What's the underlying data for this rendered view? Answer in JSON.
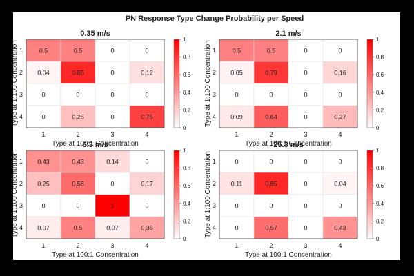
{
  "figure_title": "PN Response Type Change Probability per Speed",
  "colorbar": {
    "ticks": [
      "0",
      "0.2",
      "0.4",
      "0.6",
      "0.8",
      "1"
    ],
    "min": 0,
    "max": 1,
    "low_color": "#ffffff",
    "high_color": "#ff0000"
  },
  "chart_data": [
    {
      "type": "heatmap",
      "title": "0.35 m/s",
      "xlabel": "Type at 100:1 Concentration",
      "ylabel": "Type at 1:100 Concentration",
      "x_categories": [
        "1",
        "2",
        "3",
        "4"
      ],
      "y_categories": [
        "1",
        "2",
        "3",
        "4"
      ],
      "values": [
        [
          0.5,
          0.5,
          0,
          0
        ],
        [
          0.04,
          0.85,
          0,
          0.12
        ],
        [
          0,
          0,
          0,
          0
        ],
        [
          0,
          0.25,
          0,
          0.75
        ]
      ],
      "labels": [
        [
          "0.5",
          "0.5",
          "0",
          "0"
        ],
        [
          "0.04",
          "0.85",
          "0",
          "0.12"
        ],
        [
          "0",
          "0",
          "0",
          "0"
        ],
        [
          "0",
          "0.25",
          "0",
          "0.75"
        ]
      ]
    },
    {
      "type": "heatmap",
      "title": "2.1 m/s",
      "xlabel": "Type at 100:1 Concentration",
      "ylabel": "Type at 1:100 Concentration",
      "x_categories": [
        "1",
        "2",
        "3",
        "4"
      ],
      "y_categories": [
        "1",
        "2",
        "3",
        "4"
      ],
      "values": [
        [
          0.5,
          0.5,
          0,
          0
        ],
        [
          0.05,
          0.79,
          0,
          0.16
        ],
        [
          0,
          0,
          0,
          0
        ],
        [
          0.09,
          0.64,
          0,
          0.27
        ]
      ],
      "labels": [
        [
          "0.5",
          "0.5",
          "0",
          "0"
        ],
        [
          "0.05",
          "0.79",
          "0",
          "0.16"
        ],
        [
          "0",
          "0",
          "0",
          "0"
        ],
        [
          "0.09",
          "0.64",
          "0",
          "0.27"
        ]
      ]
    },
    {
      "type": "heatmap",
      "title": "6.3 m/s",
      "xlabel": "Type at 100:1 Concentration",
      "ylabel": "Type at 1:100 Concentration",
      "x_categories": [
        "1",
        "2",
        "3",
        "4"
      ],
      "y_categories": [
        "1",
        "2",
        "3",
        "4"
      ],
      "values": [
        [
          0.43,
          0.43,
          0.14,
          0
        ],
        [
          0.25,
          0.58,
          0,
          0.17
        ],
        [
          0,
          0,
          1,
          0
        ],
        [
          0.07,
          0.5,
          0.07,
          0.36
        ]
      ],
      "labels": [
        [
          "0.43",
          "0.43",
          "0.14",
          "0"
        ],
        [
          "0.25",
          "0.58",
          "0",
          "0.17"
        ],
        [
          "0",
          "0",
          "1",
          "0"
        ],
        [
          "0.07",
          "0.5",
          "0.07",
          "0.36"
        ]
      ]
    },
    {
      "type": "heatmap",
      "title": "25.3 m/s",
      "xlabel": "Type at 100:1 Concentration",
      "ylabel": "Type at 1:100 Concentration",
      "x_categories": [
        "1",
        "2",
        "3",
        "4"
      ],
      "y_categories": [
        "1",
        "2",
        "3",
        "4"
      ],
      "values": [
        [
          0,
          0,
          0,
          0
        ],
        [
          0.11,
          0.85,
          0,
          0.04
        ],
        [
          0,
          0,
          0,
          0
        ],
        [
          0,
          0.57,
          0,
          0.43
        ]
      ],
      "labels": [
        [
          "0",
          "0",
          "0",
          "0"
        ],
        [
          "0.11",
          "0.85",
          "0",
          "0.04"
        ],
        [
          "0",
          "0",
          "0",
          "0"
        ],
        [
          "0",
          "0.57",
          "0",
          "0.43"
        ]
      ]
    }
  ]
}
